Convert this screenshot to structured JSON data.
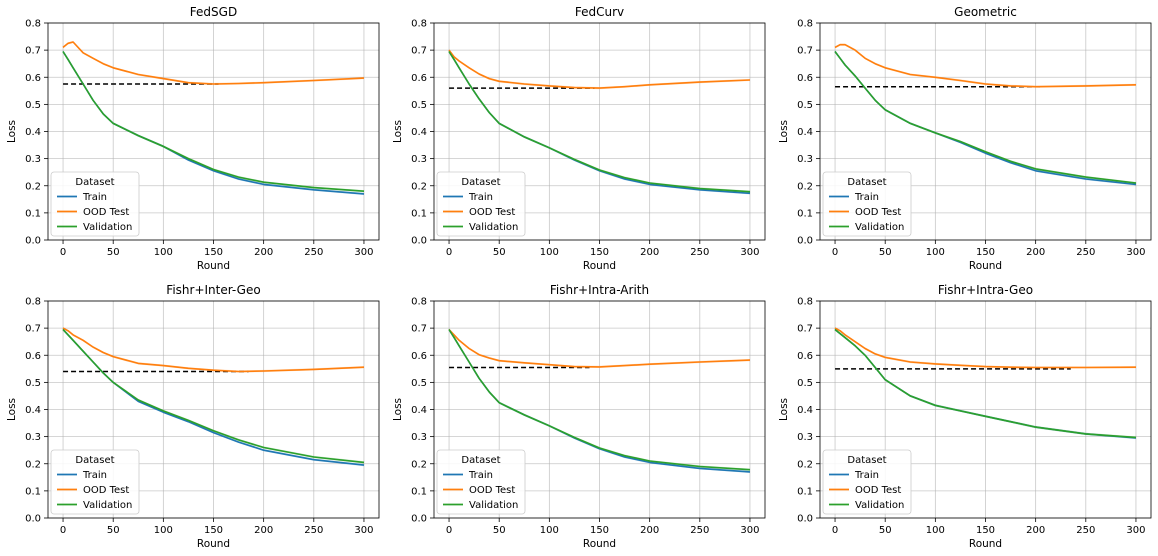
{
  "figure": {
    "shared": {
      "xlabel": "Round",
      "ylabel": "Loss",
      "xlim": [
        -15,
        315
      ],
      "ylim": [
        0,
        0.8
      ],
      "xticks": [
        0,
        50,
        100,
        150,
        200,
        250,
        300
      ],
      "yticks": [
        0.0,
        0.1,
        0.2,
        0.3,
        0.4,
        0.5,
        0.6,
        0.7,
        0.8
      ],
      "grid": true,
      "legend": {
        "title": "Dataset",
        "location": "lower-left",
        "entries": [
          "Train",
          "OOD Test",
          "Validation"
        ]
      },
      "colors": {
        "Train": "#1f77b4",
        "OOD Test": "#ff7f0e",
        "Validation": "#2ca02c",
        "baseline": "#000000"
      }
    }
  },
  "chart_data": [
    {
      "type": "line",
      "title": "FedSGD",
      "xlabel": "Round",
      "ylabel": "Loss",
      "x": [
        0,
        5,
        10,
        20,
        30,
        40,
        50,
        75,
        100,
        125,
        150,
        175,
        200,
        250,
        300
      ],
      "series": [
        {
          "name": "Train",
          "values": [
            0.695,
            0.665,
            0.635,
            0.575,
            0.515,
            0.465,
            0.43,
            0.385,
            0.345,
            0.295,
            0.255,
            0.225,
            0.205,
            0.185,
            0.17
          ]
        },
        {
          "name": "OOD Test",
          "values": [
            0.71,
            0.725,
            0.73,
            0.69,
            0.67,
            0.65,
            0.635,
            0.61,
            0.595,
            0.58,
            0.575,
            0.577,
            0.58,
            0.588,
            0.597
          ]
        },
        {
          "name": "Validation",
          "values": [
            0.695,
            0.665,
            0.635,
            0.575,
            0.515,
            0.465,
            0.43,
            0.385,
            0.345,
            0.3,
            0.26,
            0.232,
            0.213,
            0.193,
            0.18
          ]
        }
      ],
      "baseline": {
        "y": 0.575,
        "x": [
          0,
          155
        ]
      }
    },
    {
      "type": "line",
      "title": "FedCurv",
      "xlabel": "Round",
      "ylabel": "Loss",
      "x": [
        0,
        5,
        10,
        20,
        30,
        40,
        50,
        75,
        100,
        125,
        150,
        175,
        200,
        250,
        300
      ],
      "series": [
        {
          "name": "Train",
          "values": [
            0.695,
            0.665,
            0.635,
            0.575,
            0.52,
            0.47,
            0.43,
            0.38,
            0.34,
            0.295,
            0.255,
            0.225,
            0.205,
            0.185,
            0.172
          ]
        },
        {
          "name": "OOD Test",
          "values": [
            0.7,
            0.675,
            0.66,
            0.635,
            0.612,
            0.595,
            0.585,
            0.575,
            0.568,
            0.562,
            0.56,
            0.565,
            0.572,
            0.582,
            0.59
          ]
        },
        {
          "name": "Validation",
          "values": [
            0.695,
            0.665,
            0.635,
            0.575,
            0.52,
            0.47,
            0.43,
            0.38,
            0.34,
            0.297,
            0.258,
            0.23,
            0.21,
            0.19,
            0.178
          ]
        }
      ],
      "baseline": {
        "y": 0.56,
        "x": [
          0,
          145
        ]
      }
    },
    {
      "type": "line",
      "title": "Geometric",
      "xlabel": "Round",
      "ylabel": "Loss",
      "x": [
        0,
        5,
        10,
        20,
        30,
        40,
        50,
        75,
        100,
        125,
        150,
        175,
        200,
        250,
        300
      ],
      "series": [
        {
          "name": "Train",
          "values": [
            0.695,
            0.67,
            0.645,
            0.605,
            0.56,
            0.515,
            0.48,
            0.43,
            0.395,
            0.36,
            0.32,
            0.285,
            0.255,
            0.225,
            0.205
          ]
        },
        {
          "name": "OOD Test",
          "values": [
            0.71,
            0.72,
            0.72,
            0.7,
            0.67,
            0.65,
            0.635,
            0.61,
            0.6,
            0.588,
            0.575,
            0.568,
            0.565,
            0.568,
            0.572
          ]
        },
        {
          "name": "Validation",
          "values": [
            0.695,
            0.67,
            0.645,
            0.605,
            0.56,
            0.515,
            0.48,
            0.43,
            0.395,
            0.363,
            0.325,
            0.29,
            0.262,
            0.232,
            0.21
          ]
        }
      ],
      "baseline": {
        "y": 0.565,
        "x": [
          0,
          205
        ]
      }
    },
    {
      "type": "line",
      "title": "Fishr+Inter-Geo",
      "xlabel": "Round",
      "ylabel": "Loss",
      "x": [
        0,
        5,
        10,
        20,
        30,
        40,
        50,
        75,
        100,
        125,
        150,
        175,
        200,
        250,
        300
      ],
      "series": [
        {
          "name": "Train",
          "values": [
            0.695,
            0.675,
            0.655,
            0.615,
            0.575,
            0.535,
            0.5,
            0.43,
            0.39,
            0.355,
            0.315,
            0.28,
            0.25,
            0.215,
            0.195
          ]
        },
        {
          "name": "OOD Test",
          "values": [
            0.7,
            0.69,
            0.675,
            0.655,
            0.63,
            0.61,
            0.595,
            0.57,
            0.562,
            0.552,
            0.545,
            0.54,
            0.542,
            0.548,
            0.556
          ]
        },
        {
          "name": "Validation",
          "values": [
            0.695,
            0.675,
            0.655,
            0.615,
            0.575,
            0.535,
            0.5,
            0.435,
            0.395,
            0.36,
            0.322,
            0.288,
            0.26,
            0.225,
            0.205
          ]
        }
      ],
      "baseline": {
        "y": 0.54,
        "x": [
          0,
          185
        ]
      }
    },
    {
      "type": "line",
      "title": "Fishr+Intra-Arith",
      "xlabel": "Round",
      "ylabel": "Loss",
      "x": [
        0,
        5,
        10,
        20,
        30,
        40,
        50,
        75,
        100,
        125,
        150,
        175,
        200,
        250,
        300
      ],
      "series": [
        {
          "name": "Train",
          "values": [
            0.695,
            0.665,
            0.635,
            0.575,
            0.515,
            0.465,
            0.425,
            0.38,
            0.34,
            0.295,
            0.255,
            0.225,
            0.205,
            0.183,
            0.17
          ]
        },
        {
          "name": "OOD Test",
          "values": [
            0.695,
            0.675,
            0.655,
            0.625,
            0.602,
            0.59,
            0.58,
            0.572,
            0.565,
            0.558,
            0.557,
            0.562,
            0.567,
            0.575,
            0.582
          ]
        },
        {
          "name": "Validation",
          "values": [
            0.695,
            0.665,
            0.635,
            0.575,
            0.515,
            0.465,
            0.425,
            0.38,
            0.34,
            0.297,
            0.258,
            0.23,
            0.21,
            0.19,
            0.178
          ]
        }
      ],
      "baseline": {
        "y": 0.555,
        "x": [
          0,
          140
        ]
      }
    },
    {
      "type": "line",
      "title": "Fishr+Intra-Geo",
      "xlabel": "Round",
      "ylabel": "Loss",
      "x": [
        0,
        5,
        10,
        20,
        30,
        40,
        50,
        75,
        100,
        125,
        150,
        175,
        200,
        250,
        300
      ],
      "series": [
        {
          "name": "Train",
          "values": [
            0.695,
            0.68,
            0.665,
            0.635,
            0.6,
            0.555,
            0.51,
            0.45,
            0.415,
            0.395,
            0.375,
            0.355,
            0.335,
            0.31,
            0.295
          ]
        },
        {
          "name": "OOD Test",
          "values": [
            0.7,
            0.69,
            0.675,
            0.65,
            0.625,
            0.605,
            0.592,
            0.575,
            0.568,
            0.563,
            0.558,
            0.556,
            0.555,
            0.555,
            0.556
          ]
        },
        {
          "name": "Validation",
          "values": [
            0.695,
            0.68,
            0.665,
            0.635,
            0.6,
            0.555,
            0.51,
            0.45,
            0.415,
            0.395,
            0.375,
            0.355,
            0.335,
            0.31,
            0.297
          ]
        }
      ],
      "baseline": {
        "y": 0.55,
        "x": [
          0,
          235
        ]
      }
    }
  ]
}
